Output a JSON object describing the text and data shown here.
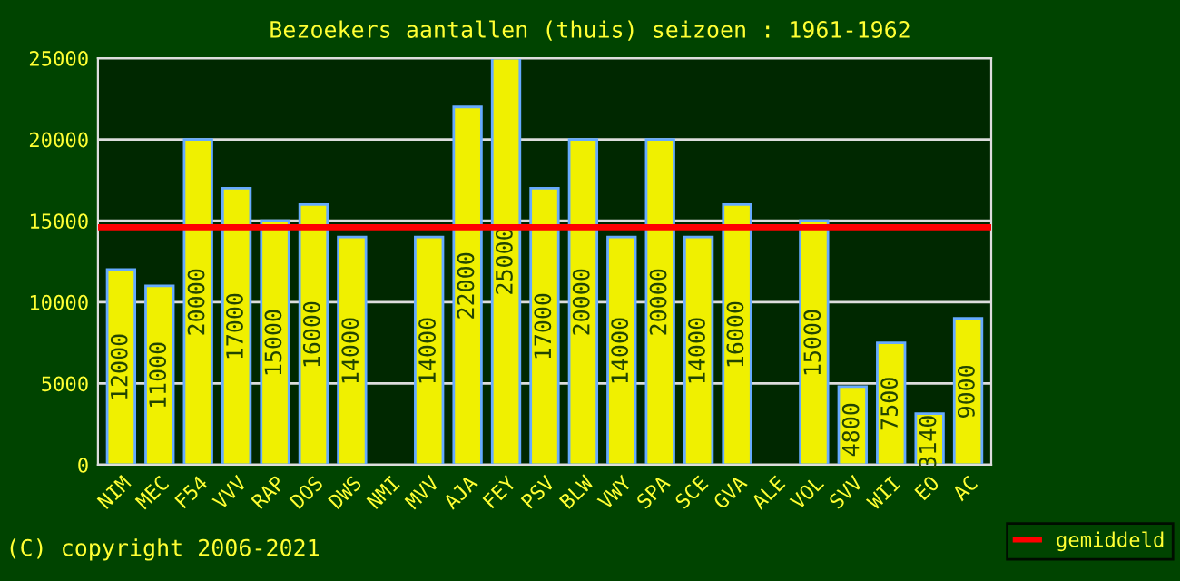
{
  "chart_data": {
    "type": "bar",
    "title": "Bezoekers aantallen (thuis) seizoen : 1961-1962",
    "categories": [
      "NIM",
      "MEC",
      "F54",
      "VVV",
      "RAP",
      "DOS",
      "DWS",
      "NMI",
      "MVV",
      "AJA",
      "FEY",
      "PSV",
      "BLW",
      "VWY",
      "SPA",
      "SCE",
      "GVA",
      "ALE",
      "VOL",
      "SVV",
      "WII",
      "EO",
      "AC"
    ],
    "values": [
      12000,
      11000,
      20000,
      17000,
      15000,
      16000,
      14000,
      null,
      14000,
      22000,
      25000,
      17000,
      20000,
      14000,
      20000,
      14000,
      16000,
      null,
      15000,
      4800,
      7500,
      3140,
      9000
    ],
    "color": "#f0f000",
    "ylim": [
      0,
      25000
    ],
    "yticks": [
      0,
      5000,
      10000,
      15000,
      20000,
      25000
    ],
    "grid": "y",
    "data_labels": true,
    "ref_lines": [
      {
        "axis": "y",
        "value": 14600,
        "label": "gemiddeld",
        "color": "#ff0000"
      }
    ],
    "legend": "bottom right",
    "annotations": [
      "(C) copyright 2006-2021"
    ]
  }
}
